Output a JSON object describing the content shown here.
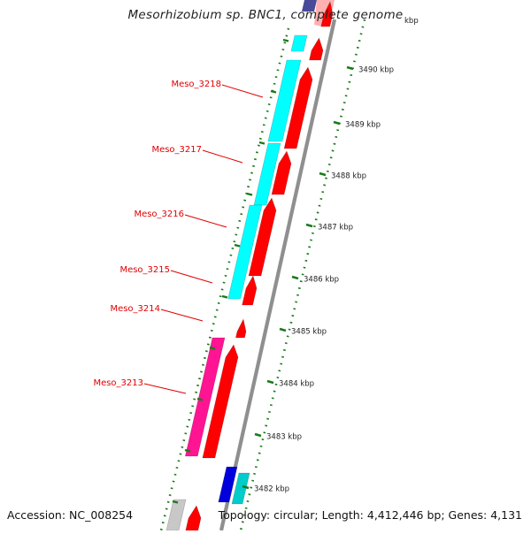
{
  "title": "Mesorhizobium sp. BNC1, complete genome",
  "accession": "Accession: NC_008254",
  "summary": "Topology: circular; Length: 4,412,446 bp; Genes: 4,131",
  "colors": {
    "label": "#e00000",
    "backbone": "#8f8f8f",
    "tick": "#1a7a1a",
    "forward_gene": "#ff0000",
    "cyan_feature": "#00ffff",
    "magenta_feature": "#ff1493",
    "blue_feature": "#0000dd",
    "teal_feature": "#00cccc",
    "grey_feature": "#c8c8c8",
    "navy_feature": "#4a4a9a"
  },
  "gene_labels": [
    "Meso_3218",
    "Meso_3217",
    "Meso_3216",
    "Meso_3215",
    "Meso_3214",
    "Meso_3213"
  ],
  "scale_labels": [
    "3490 kbp",
    "3489 kbp",
    "3488 kbp",
    "3487 kbp",
    "3486 kbp",
    "3485 kbp",
    "3484 kbp",
    "3483 kbp",
    "3482 kbp"
  ],
  "scale_label_partial": "kbp"
}
